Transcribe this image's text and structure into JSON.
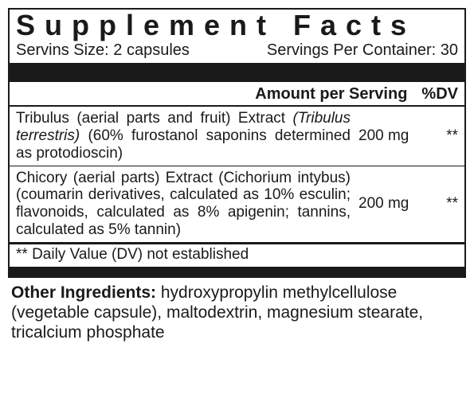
{
  "title": "Supplement Facts",
  "serving_size_label": "Servins Size: 2 capsules",
  "servings_per_container_label": "Servings Per Container: 30",
  "header": {
    "amount": "Amount per Serving",
    "dv": "%DV"
  },
  "rows": [
    {
      "desc_prefix": "Tribulus (aerial parts and fruit) Extract ",
      "desc_italic": "(Tribulus terrestris)",
      "desc_suffix": " (60% furostanol saponins determined as protodioscin)",
      "amount": "200 mg",
      "dv": "**"
    },
    {
      "desc_prefix": "Chicory (aerial parts) Extract (Cichorium intybus) (coumarin derivatives, calculated as 10% esculin; flavonoids, calculated as 8% apigenin; tannins, calculated as 5% tannin)",
      "desc_italic": "",
      "desc_suffix": "",
      "amount": "200 mg",
      "dv": "**"
    }
  ],
  "footnote": "** Daily Value (DV) not established",
  "other_label": "Other Ingredients:",
  "other_text": " hydroxypropylin methylcellulose (vegetable capsule), maltodextrin, magnesium stearate, tricalcium phosphate"
}
